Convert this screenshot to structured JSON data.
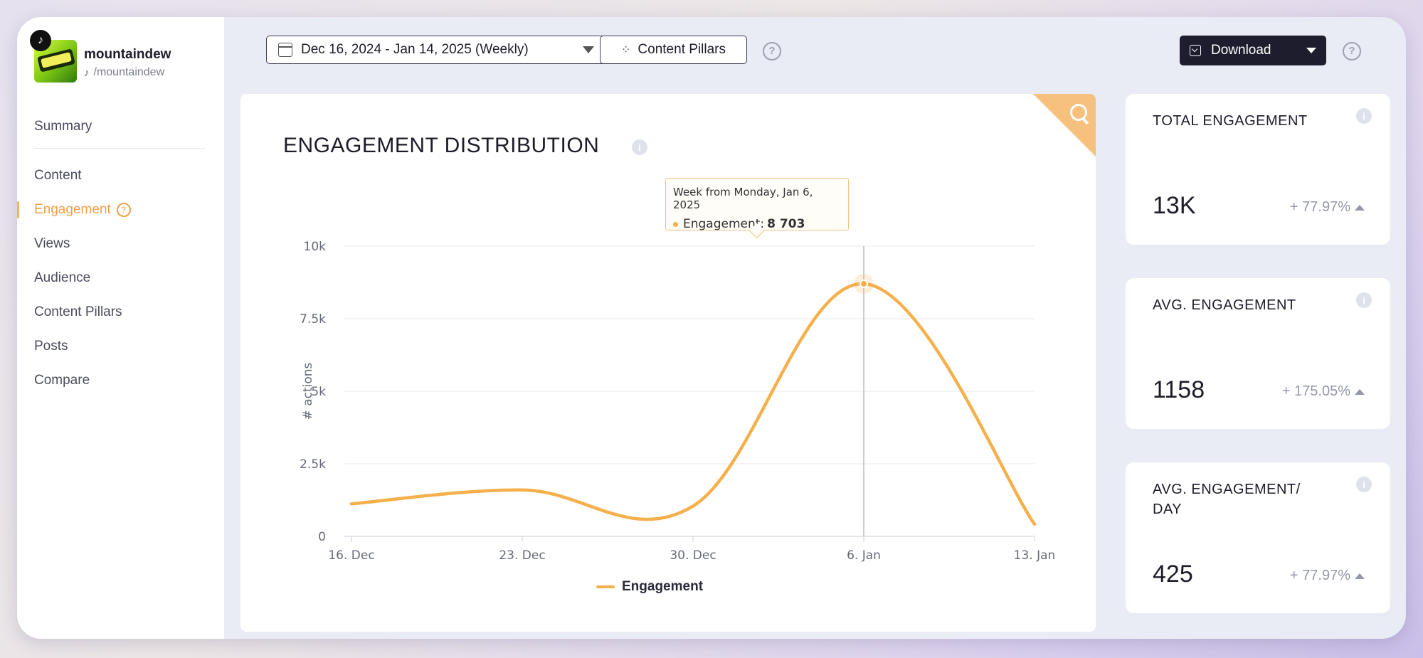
{
  "profile": {
    "name": "mountaindew",
    "handle": "/mountaindew"
  },
  "nav": {
    "items": [
      {
        "label": "Summary"
      },
      {
        "label": "Content"
      },
      {
        "label": "Engagement"
      },
      {
        "label": "Views"
      },
      {
        "label": "Audience"
      },
      {
        "label": "Content Pillars"
      },
      {
        "label": "Posts"
      },
      {
        "label": "Compare"
      }
    ],
    "active": "Engagement"
  },
  "toolbar": {
    "date_range": "Dec 16, 2024 - Jan 14, 2025 (Weekly)",
    "pillars_label": "Content Pillars",
    "download_label": "Download"
  },
  "chart_card": {
    "title": "ENGAGEMENT DISTRIBUTION",
    "tooltip": {
      "week": "Week from Monday, Jan 6, 2025",
      "series": "Engagement:",
      "value": "8 703"
    }
  },
  "chart_data": {
    "type": "line",
    "x": [
      "16. Dec",
      "23. Dec",
      "30. Dec",
      "6. Jan",
      "13. Jan"
    ],
    "series": [
      {
        "name": "Engagement",
        "values": [
          1120,
          1600,
          1040,
          8703,
          420
        ]
      }
    ],
    "ylabel": "# actions",
    "yticks": [
      "0",
      "2.5k",
      "5k",
      "7.5k",
      "10k"
    ],
    "ylim": [
      0,
      10000
    ],
    "color": "#f5b04c",
    "grid": true,
    "legend": "bottom-center",
    "highlighted_index": 3
  },
  "stats": [
    {
      "label": "TOTAL ENGAGEMENT",
      "value": "13K",
      "delta": "+ 77.97%"
    },
    {
      "label": "AVG. ENGAGEMENT",
      "value": "1158",
      "delta": "+ 175.05%"
    },
    {
      "label": "AVG. ENGAGEMENT/ DAY",
      "value": "425",
      "delta": "+ 77.97%"
    }
  ]
}
